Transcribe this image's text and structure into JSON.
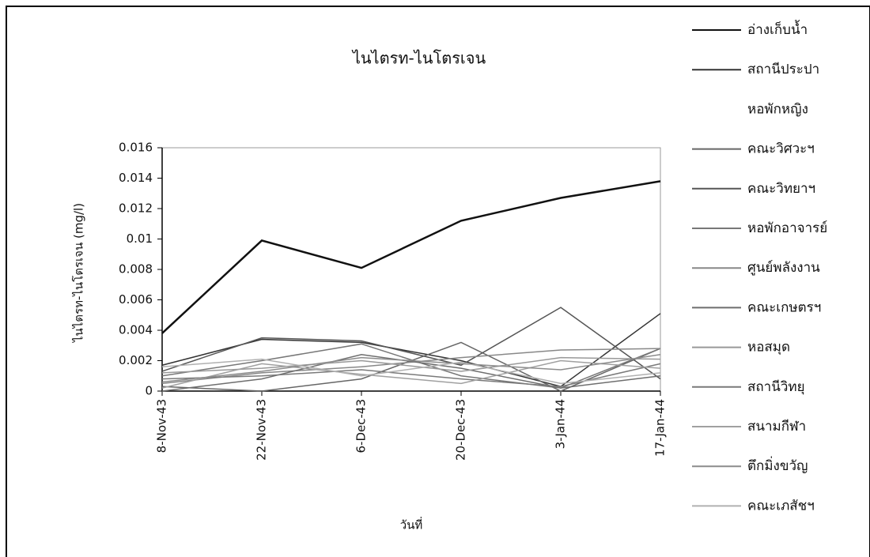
{
  "chart_data": {
    "type": "line",
    "title": "ไนไตรท-ไนโตรเจน",
    "x_label": "วันที่",
    "y_label": "ไนไตรท-ไนโตรเจน (mg/l)",
    "categories": [
      "8-Nov-43",
      "22-Nov-43",
      "6-Dec-43",
      "20-Dec-43",
      "3-Jan-44",
      "17-Jan-44"
    ],
    "ylim": [
      0,
      0.016
    ],
    "yticks": [
      0,
      0.002,
      0.004,
      0.006,
      0.008,
      0.01,
      0.012,
      0.014,
      0.016
    ],
    "series": [
      {
        "name": "อ่างเก็บน้ำ",
        "color": "#111111",
        "values": [
          0.0038,
          0.0099,
          0.0081,
          0.0112,
          0.0127,
          0.0138
        ]
      },
      {
        "name": "สถานีประปา",
        "color": "#333333",
        "values": [
          0.0017,
          0.0034,
          0.0032,
          0.002,
          0.0003,
          0.0051
        ]
      },
      {
        "name": "หอพักหญิง",
        "color": "#ffffff",
        "values": [
          null,
          null,
          null,
          null,
          null,
          null
        ]
      },
      {
        "name": "คณะวิศวะฯ",
        "color": "#666666",
        "values": [
          0.0003,
          0.0,
          0.0008,
          0.0032,
          0.0,
          0.0028
        ]
      },
      {
        "name": "คณะวิทยาฯ",
        "color": "#555555",
        "values": [
          0.0013,
          0.0035,
          0.0033,
          0.0017,
          0.0055,
          0.0008
        ]
      },
      {
        "name": "หอพักอาจารย์",
        "color": "#777777",
        "values": [
          0.001,
          0.002,
          0.0031,
          0.001,
          0.0002,
          0.0028
        ]
      },
      {
        "name": "ศูนย์พลังงาน",
        "color": "#888888",
        "values": [
          0.0005,
          0.0012,
          0.0016,
          0.0022,
          0.0027,
          0.0028
        ]
      },
      {
        "name": "คณะเกษตรฯ",
        "color": "#6e6e6e",
        "values": [
          0.0,
          0.0008,
          0.0024,
          0.0015,
          0.0002,
          0.001
        ]
      },
      {
        "name": "หอสมุด",
        "color": "#999999",
        "values": [
          0.0012,
          0.0015,
          0.002,
          0.0013,
          0.0022,
          0.0021
        ]
      },
      {
        "name": "สถานีวิทยุ",
        "color": "#7a7a7a",
        "values": [
          0.0008,
          0.001,
          0.0014,
          0.0008,
          0.0003,
          0.0018
        ]
      },
      {
        "name": "สนามกีฬา",
        "color": "#a0a0a0",
        "values": [
          0.0002,
          0.0018,
          0.0011,
          0.0005,
          0.002,
          0.0015
        ]
      },
      {
        "name": "ตึกมิ่งขวัญ",
        "color": "#8c8c8c",
        "values": [
          0.0006,
          0.0013,
          0.0022,
          0.0018,
          0.0014,
          0.0024
        ]
      },
      {
        "name": "คณะเภสัชฯ",
        "color": "#b0b0b0",
        "values": [
          0.0016,
          0.0021,
          0.001,
          0.0019,
          0.0005,
          0.0012
        ]
      }
    ]
  }
}
